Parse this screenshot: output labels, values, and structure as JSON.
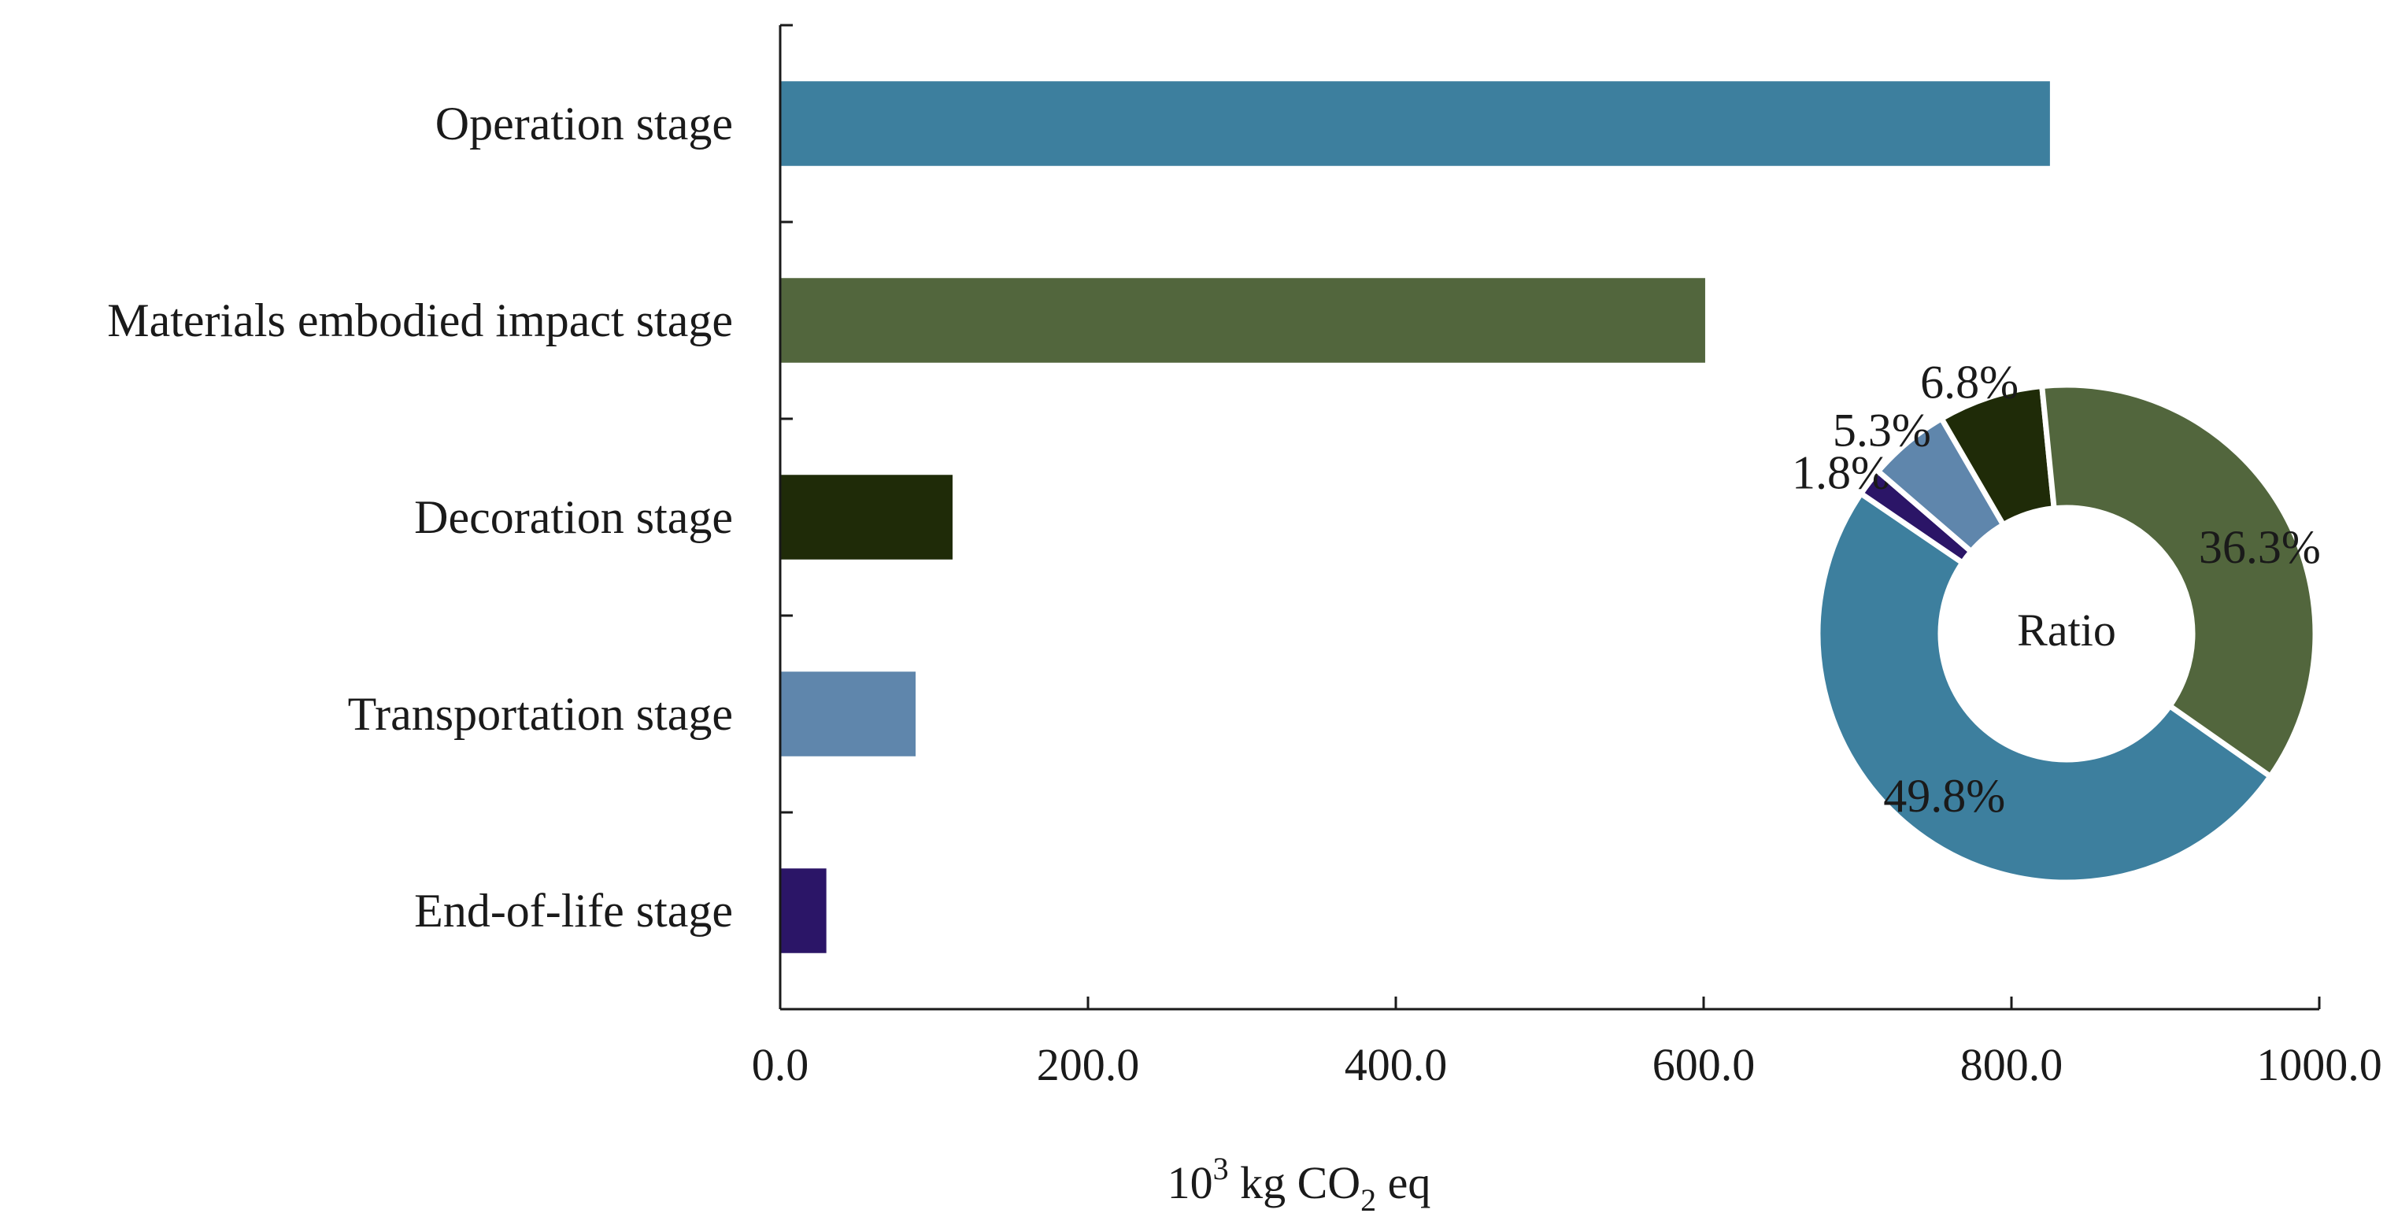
{
  "chart_data": [
    {
      "type": "bar",
      "orientation": "horizontal",
      "categories": [
        "Operation stage",
        "Materials embodied impact stage",
        "Decoration stage",
        "Transportation stage",
        "End-of-life stage"
      ],
      "values": [
        825,
        601,
        112,
        88,
        30
      ],
      "colors": [
        "#3d7f9e",
        "#52663d",
        "#1f2b08",
        "#5f86ac",
        "#2b1567"
      ],
      "xlim": [
        0,
        1000
      ],
      "xticks": [
        0,
        200,
        400,
        600,
        800,
        1000
      ],
      "xtick_labels": [
        "0.0",
        "200.0",
        "400.0",
        "600.0",
        "800.0",
        "1000.0"
      ],
      "xlabel": {
        "base": "10",
        "sup": "3",
        "unit_prefix": " kg CO",
        "sub": "2",
        "unit_suffix": " eq"
      },
      "grid": false,
      "title": ""
    },
    {
      "type": "pie",
      "variant": "donut",
      "center_label": "Ratio",
      "slices": [
        {
          "name": "Operation stage",
          "value": 49.8,
          "label": "49.8%",
          "color": "#3d7f9e"
        },
        {
          "name": "End-of-life stage",
          "value": 1.8,
          "label": "1.8%",
          "color": "#2b1567"
        },
        {
          "name": "Transportation stage",
          "value": 5.3,
          "label": "5.3%",
          "color": "#5f86ac"
        },
        {
          "name": "Decoration stage",
          "value": 6.8,
          "label": "6.8%",
          "color": "#1f2b08"
        },
        {
          "name": "Materials embodied impact stage",
          "value": 36.3,
          "label": "36.3%",
          "color": "#52663d"
        }
      ]
    }
  ]
}
